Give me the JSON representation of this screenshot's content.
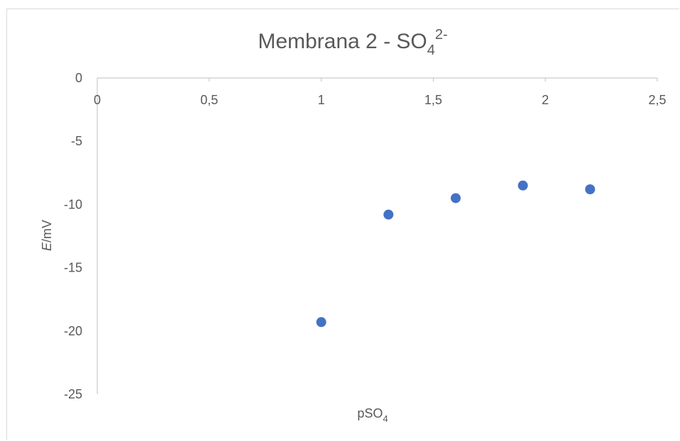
{
  "chart_data": {
    "type": "scatter",
    "title": {
      "main": "Membrana 2 - SO",
      "sub": "4",
      "sup": "2-"
    },
    "xlabel": {
      "main": "pSO",
      "sub": "4"
    },
    "ylabel": {
      "italic": "E",
      "rest": "/mV"
    },
    "xlim": [
      0,
      2.5
    ],
    "ylim": [
      -25,
      0
    ],
    "x_ticks": [
      {
        "value": 0,
        "label": "0"
      },
      {
        "value": 0.5,
        "label": "0,5"
      },
      {
        "value": 1,
        "label": "1"
      },
      {
        "value": 1.5,
        "label": "1,5"
      },
      {
        "value": 2,
        "label": "2"
      },
      {
        "value": 2.5,
        "label": "2,5"
      }
    ],
    "y_ticks": [
      {
        "value": 0,
        "label": "0"
      },
      {
        "value": -5,
        "label": "-5"
      },
      {
        "value": -10,
        "label": "-10"
      },
      {
        "value": -15,
        "label": "-15"
      },
      {
        "value": -20,
        "label": "-20"
      },
      {
        "value": -25,
        "label": "-25"
      }
    ],
    "grid": false,
    "legend": "none",
    "marker_color": "#4472c4",
    "axis_color": "#bfbfbf",
    "text_color": "#595959",
    "series": [
      {
        "points": [
          {
            "x": 1.0,
            "y": -19.3
          },
          {
            "x": 1.3,
            "y": -10.8
          },
          {
            "x": 1.6,
            "y": -9.5
          },
          {
            "x": 1.9,
            "y": -8.5
          },
          {
            "x": 2.2,
            "y": -8.8
          }
        ]
      }
    ]
  }
}
